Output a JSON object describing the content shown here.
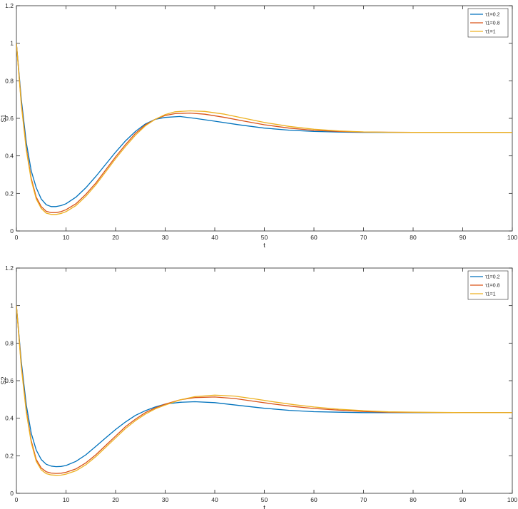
{
  "chart_data": [
    {
      "type": "line",
      "xlabel": "t",
      "ylabel": "S1",
      "xlim": [
        0,
        100
      ],
      "ylim": [
        0,
        1.2
      ],
      "xticks": [
        0,
        10,
        20,
        30,
        40,
        50,
        60,
        70,
        80,
        90,
        100
      ],
      "yticks": [
        0,
        0.2,
        0.4,
        0.6,
        0.8,
        1,
        1.2
      ],
      "legend_position": "top-right",
      "grid": false,
      "series": [
        {
          "name": "τ1=0.2",
          "color": "#0072bd",
          "x": [
            0,
            1,
            2,
            3,
            4,
            5,
            6,
            7,
            8,
            9,
            10,
            12,
            14,
            16,
            18,
            20,
            22,
            24,
            26,
            28,
            30,
            33,
            36,
            40,
            45,
            50,
            55,
            60,
            65,
            70,
            75,
            80,
            90,
            100
          ],
          "y": [
            1.0,
            0.7,
            0.47,
            0.32,
            0.23,
            0.17,
            0.14,
            0.13,
            0.13,
            0.135,
            0.145,
            0.18,
            0.23,
            0.29,
            0.355,
            0.42,
            0.48,
            0.53,
            0.57,
            0.595,
            0.605,
            0.61,
            0.6,
            0.585,
            0.565,
            0.548,
            0.537,
            0.53,
            0.527,
            0.525,
            0.525,
            0.525,
            0.525,
            0.525
          ]
        },
        {
          "name": "τ1=0.8",
          "color": "#d95319",
          "x": [
            0,
            1,
            2,
            3,
            4,
            5,
            6,
            7,
            8,
            9,
            10,
            12,
            14,
            16,
            18,
            20,
            22,
            24,
            26,
            28,
            30,
            32,
            35,
            38,
            42,
            46,
            50,
            55,
            60,
            65,
            70,
            75,
            80,
            90,
            100
          ],
          "y": [
            1.0,
            0.68,
            0.44,
            0.28,
            0.18,
            0.13,
            0.105,
            0.098,
            0.098,
            0.103,
            0.113,
            0.145,
            0.195,
            0.255,
            0.325,
            0.395,
            0.46,
            0.52,
            0.565,
            0.595,
            0.615,
            0.625,
            0.628,
            0.622,
            0.605,
            0.585,
            0.566,
            0.548,
            0.536,
            0.53,
            0.527,
            0.526,
            0.525,
            0.525,
            0.525
          ]
        },
        {
          "name": "τ1=1",
          "color": "#edb120",
          "x": [
            0,
            1,
            2,
            3,
            4,
            5,
            6,
            7,
            8,
            9,
            10,
            12,
            14,
            16,
            18,
            20,
            22,
            24,
            26,
            28,
            30,
            32,
            35,
            38,
            42,
            46,
            50,
            55,
            60,
            65,
            70,
            75,
            80,
            90,
            100
          ],
          "y": [
            1.0,
            0.67,
            0.43,
            0.27,
            0.17,
            0.12,
            0.095,
            0.088,
            0.088,
            0.093,
            0.103,
            0.135,
            0.185,
            0.245,
            0.315,
            0.385,
            0.45,
            0.51,
            0.56,
            0.595,
            0.62,
            0.635,
            0.64,
            0.637,
            0.622,
            0.6,
            0.578,
            0.557,
            0.542,
            0.533,
            0.528,
            0.526,
            0.525,
            0.525,
            0.525
          ]
        }
      ]
    },
    {
      "type": "line",
      "xlabel": "t",
      "ylabel": "S2",
      "xlim": [
        0,
        100
      ],
      "ylim": [
        0,
        1.2
      ],
      "xticks": [
        0,
        10,
        20,
        30,
        40,
        50,
        60,
        70,
        80,
        90,
        100
      ],
      "yticks": [
        0,
        0.2,
        0.4,
        0.6,
        0.8,
        1,
        1.2
      ],
      "legend_position": "top-right",
      "grid": false,
      "series": [
        {
          "name": "τ1=0.2",
          "color": "#0072bd",
          "x": [
            0,
            1,
            2,
            3,
            4,
            5,
            6,
            7,
            8,
            9,
            10,
            12,
            14,
            16,
            18,
            20,
            22,
            24,
            26,
            28,
            30,
            33,
            36,
            40,
            45,
            50,
            55,
            60,
            65,
            70,
            75,
            80,
            90,
            100
          ],
          "y": [
            1.0,
            0.7,
            0.47,
            0.32,
            0.23,
            0.18,
            0.155,
            0.145,
            0.142,
            0.143,
            0.148,
            0.17,
            0.205,
            0.25,
            0.295,
            0.34,
            0.38,
            0.415,
            0.44,
            0.46,
            0.475,
            0.485,
            0.488,
            0.483,
            0.468,
            0.453,
            0.442,
            0.435,
            0.432,
            0.43,
            0.43,
            0.43,
            0.43,
            0.43
          ]
        },
        {
          "name": "τ1=0.8",
          "color": "#d95319",
          "x": [
            0,
            1,
            2,
            3,
            4,
            5,
            6,
            7,
            8,
            9,
            10,
            12,
            14,
            16,
            18,
            20,
            22,
            24,
            26,
            28,
            30,
            33,
            36,
            40,
            44,
            48,
            52,
            56,
            60,
            65,
            70,
            75,
            80,
            90,
            100
          ],
          "y": [
            1.0,
            0.68,
            0.44,
            0.28,
            0.18,
            0.135,
            0.115,
            0.108,
            0.106,
            0.107,
            0.112,
            0.13,
            0.162,
            0.205,
            0.255,
            0.305,
            0.355,
            0.395,
            0.43,
            0.455,
            0.475,
            0.498,
            0.51,
            0.513,
            0.505,
            0.49,
            0.475,
            0.462,
            0.452,
            0.443,
            0.436,
            0.432,
            0.431,
            0.43,
            0.43
          ]
        },
        {
          "name": "τ1=1",
          "color": "#edb120",
          "x": [
            0,
            1,
            2,
            3,
            4,
            5,
            6,
            7,
            8,
            9,
            10,
            12,
            14,
            16,
            18,
            20,
            22,
            24,
            26,
            28,
            30,
            33,
            36,
            40,
            44,
            48,
            52,
            56,
            60,
            65,
            70,
            75,
            80,
            90,
            100
          ],
          "y": [
            1.0,
            0.67,
            0.43,
            0.27,
            0.17,
            0.125,
            0.105,
            0.098,
            0.096,
            0.097,
            0.102,
            0.12,
            0.152,
            0.195,
            0.245,
            0.295,
            0.345,
            0.387,
            0.422,
            0.45,
            0.47,
            0.498,
            0.515,
            0.523,
            0.518,
            0.503,
            0.487,
            0.472,
            0.46,
            0.448,
            0.44,
            0.434,
            0.432,
            0.43,
            0.43
          ]
        }
      ]
    }
  ]
}
